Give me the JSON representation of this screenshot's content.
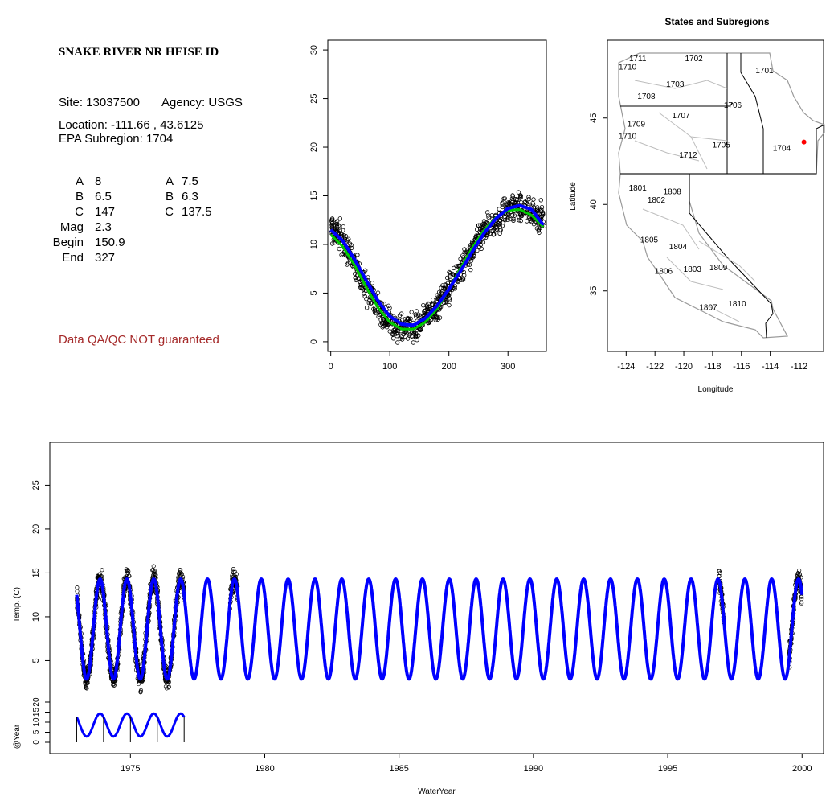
{
  "info": {
    "title": "SNAKE RIVER NR HEISE ID",
    "site": "Site: 13037500",
    "agency": "Agency: USGS",
    "location": "Location: -111.66 , 43.6125",
    "subregion": "EPA Subregion: 1704",
    "params_left": [
      {
        "label": "A",
        "value": "8"
      },
      {
        "label": "B",
        "value": "6.5"
      },
      {
        "label": "C",
        "value": "147"
      },
      {
        "label": "Mag",
        "value": "2.3"
      },
      {
        "label": "Begin",
        "value": "150.9"
      },
      {
        "label": "End",
        "value": "327"
      }
    ],
    "params_right": [
      {
        "label": "A",
        "value": "7.5"
      },
      {
        "label": "B",
        "value": "6.3"
      },
      {
        "label": "C",
        "value": "137.5"
      }
    ],
    "qa_note": "Data QA/QC NOT guaranteed",
    "qa_color": "#a52a2a"
  },
  "chart_data": [
    {
      "type": "scatter",
      "xlim": [
        -5,
        365
      ],
      "ylim": [
        -1,
        31
      ],
      "x_ticks": [
        "0",
        "100",
        "200",
        "300"
      ],
      "y_ticks": [
        "0",
        "5",
        "10",
        "15",
        "20",
        "25",
        "30"
      ],
      "series": [
        {
          "color": "#000000",
          "style": "open circles",
          "x": [
            0,
            20,
            40,
            60,
            80,
            100,
            120,
            140,
            160,
            180,
            200,
            220,
            240,
            260,
            280,
            300,
            320,
            340,
            360
          ],
          "y": [
            12.0,
            10.5,
            8.0,
            5.5,
            3.5,
            2.0,
            1.5,
            1.5,
            2.5,
            3.5,
            5.5,
            7.5,
            9.5,
            11.5,
            12.5,
            13.5,
            14.0,
            13.5,
            12.5
          ]
        },
        {
          "color": "#0000ff",
          "style": "line",
          "x": [
            0,
            20,
            40,
            60,
            80,
            100,
            120,
            140,
            160,
            180,
            200,
            220,
            240,
            260,
            280,
            300,
            320,
            340,
            360
          ],
          "y": [
            11.5,
            10.4,
            8.5,
            6.3,
            4.2,
            2.6,
            1.8,
            1.7,
            2.4,
            3.7,
            5.4,
            7.3,
            9.3,
            11.2,
            12.7,
            13.7,
            14.0,
            13.6,
            12.0
          ]
        },
        {
          "color": "#00cc00",
          "style": "line",
          "x": [
            0,
            20,
            40,
            60,
            80,
            100,
            120,
            140,
            160,
            180,
            200,
            220,
            240,
            260,
            280,
            300,
            320,
            340,
            360
          ],
          "y": [
            11.0,
            9.8,
            7.9,
            5.6,
            3.5,
            2.0,
            1.3,
            1.3,
            2.0,
            3.4,
            5.4,
            7.6,
            9.7,
            11.5,
            12.8,
            13.5,
            13.6,
            13.0,
            11.8
          ]
        }
      ]
    },
    {
      "type": "map",
      "title": "States and Subregions",
      "xlabel": "Longitude",
      "ylabel": "Latitude",
      "xlim": [
        -125.3,
        -110.3
      ],
      "ylim": [
        31.5,
        49.5
      ],
      "x_ticks": [
        "-124",
        "-122",
        "-120",
        "-118",
        "-116",
        "-114",
        "-112"
      ],
      "y_ticks": [
        "35",
        "40",
        "45"
      ],
      "regions": [
        {
          "label": "1711",
          "lon": -123.2,
          "lat": 48.3
        },
        {
          "label": "1710",
          "lon": -123.9,
          "lat": 47.8
        },
        {
          "label": "1702",
          "lon": -119.3,
          "lat": 48.3
        },
        {
          "label": "1701",
          "lon": -114.4,
          "lat": 47.6
        },
        {
          "label": "1703",
          "lon": -120.6,
          "lat": 46.8
        },
        {
          "label": "1708",
          "lon": -122.6,
          "lat": 46.1
        },
        {
          "label": "1706",
          "lon": -116.6,
          "lat": 45.6
        },
        {
          "label": "1707",
          "lon": -120.2,
          "lat": 45.0
        },
        {
          "label": "1709",
          "lon": -123.3,
          "lat": 44.5
        },
        {
          "label": "1710",
          "lon": -123.9,
          "lat": 43.8
        },
        {
          "label": "1705",
          "lon": -117.4,
          "lat": 43.3
        },
        {
          "label": "1704",
          "lon": -113.2,
          "lat": 43.1
        },
        {
          "label": "1712",
          "lon": -119.7,
          "lat": 42.7
        },
        {
          "label": "1801",
          "lon": -123.2,
          "lat": 40.8
        },
        {
          "label": "1808",
          "lon": -120.8,
          "lat": 40.6
        },
        {
          "label": "1802",
          "lon": -121.9,
          "lat": 40.1
        },
        {
          "label": "1805",
          "lon": -122.4,
          "lat": 37.8
        },
        {
          "label": "1804",
          "lon": -120.4,
          "lat": 37.4
        },
        {
          "label": "1806",
          "lon": -121.4,
          "lat": 36.0
        },
        {
          "label": "1803",
          "lon": -119.4,
          "lat": 36.1
        },
        {
          "label": "1809",
          "lon": -117.6,
          "lat": 36.2
        },
        {
          "label": "1807",
          "lon": -118.3,
          "lat": 33.9
        },
        {
          "label": "1810",
          "lon": -116.3,
          "lat": 34.1
        }
      ],
      "site": {
        "lon": -111.66,
        "lat": 43.6125,
        "color": "#ff0000"
      }
    },
    {
      "type": "line",
      "xlabel": "WaterYear",
      "ylabel": "Temp. (C)",
      "ylabel2": "@Year",
      "xlim": [
        1972.0,
        2000.8
      ],
      "ylim": [
        -5.6,
        29.9
      ],
      "x_ticks": [
        "1975",
        "1980",
        "1985",
        "1990",
        "1995",
        "2000"
      ],
      "y_ticks": [
        "5",
        "10",
        "15",
        "20",
        "25"
      ],
      "y2_ticks": [
        "0",
        "5",
        "10",
        "15",
        "20"
      ],
      "model": {
        "color": "#0000ff",
        "mean": 8.6,
        "amplitude": 5.7,
        "period_years": 1.0,
        "peak_fraction": 0.87,
        "start": 1973.0,
        "end": 2000.0
      },
      "observed": {
        "color": "#000000",
        "style": "open circles",
        "ranges": [
          [
            1973.0,
            1977.0
          ],
          [
            1978.7,
            1979.0
          ],
          [
            1996.9,
            1997.1
          ],
          [
            1999.5,
            2000.0
          ]
        ]
      },
      "mini": {
        "color": "#0000ff",
        "start": 1973.0,
        "end": 1977.0,
        "ticks": [
          1973.0,
          1974.0,
          1975.0,
          1976.0,
          1977.0
        ]
      }
    }
  ]
}
